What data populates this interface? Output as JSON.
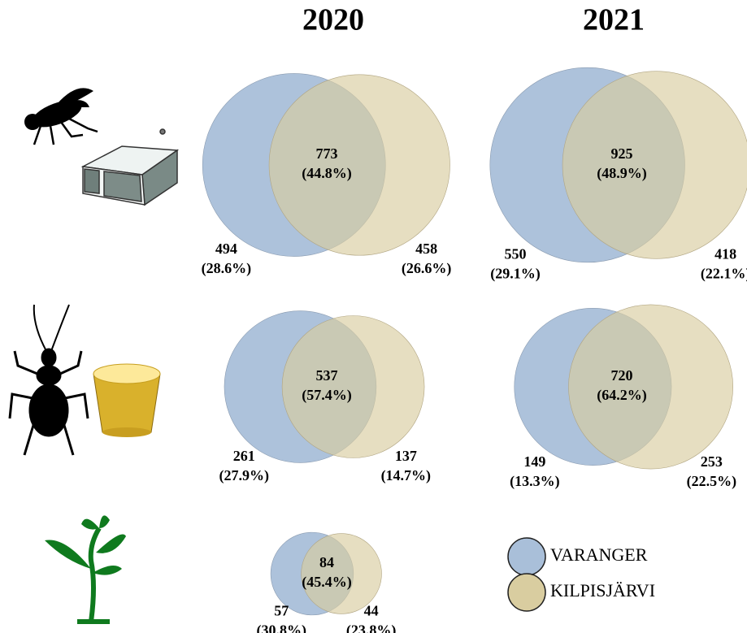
{
  "columns": [
    "2020",
    "2021"
  ],
  "legend": [
    {
      "name": "VARANGER",
      "color": "#a9bfd9"
    },
    {
      "name": "KILPISJÄRVI",
      "color": "#d9cda0"
    }
  ],
  "chart_data": [
    {
      "type": "venn",
      "values": [
        494,
        773,
        458
      ],
      "percent_labels": [
        "(28.6%)",
        "(44.8%)",
        "(26.6%)"
      ]
    },
    {
      "type": "venn",
      "values": [
        550,
        925,
        418
      ],
      "percent_labels": [
        "(29.1%)",
        "(48.9%)",
        "(22.1%)"
      ]
    },
    {
      "type": "venn",
      "values": [
        261,
        537,
        137
      ],
      "percent_labels": [
        "(27.9%)",
        "(57.4%)",
        "(14.7%)"
      ]
    },
    {
      "type": "venn",
      "values": [
        149,
        720,
        253
      ],
      "percent_labels": [
        "(13.3%)",
        "(64.2%)",
        "(22.5%)"
      ]
    },
    {
      "type": "venn",
      "values": [
        57,
        84,
        44
      ],
      "percent_labels": [
        "(30.8%)",
        "(45.4%)",
        "(23.8%)"
      ]
    }
  ]
}
